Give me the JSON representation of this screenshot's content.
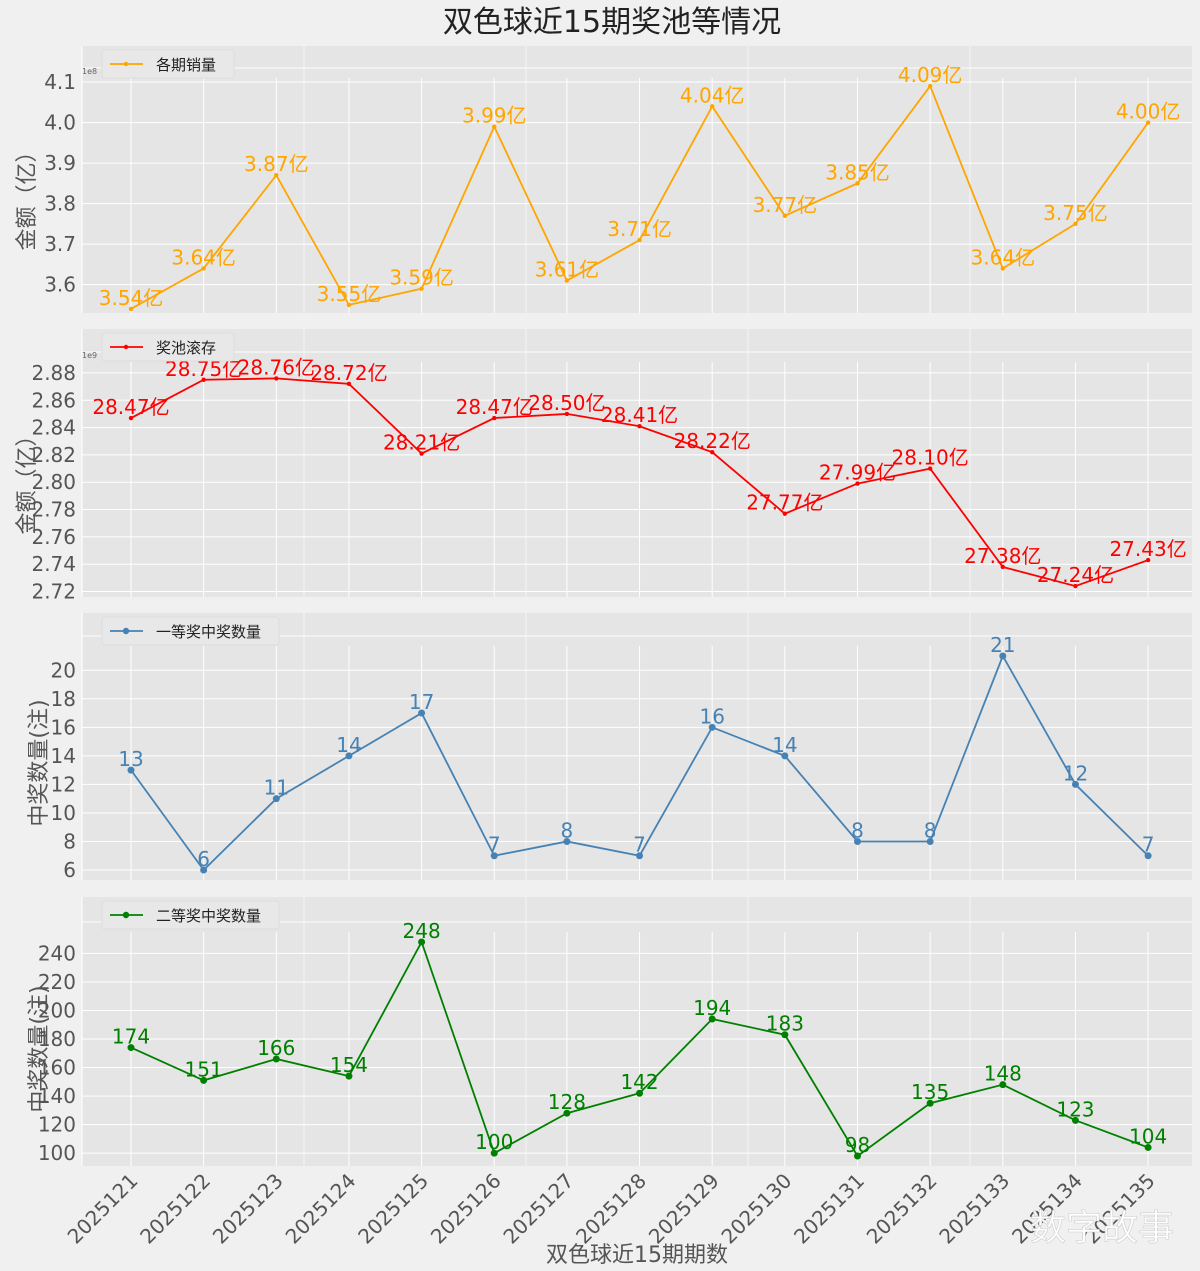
{
  "chart_data": {
    "title": "双色球近15期奖池等情况",
    "xlabel": "双色球近15期期数",
    "categories": [
      "2025121",
      "2025122",
      "2025123",
      "2025124",
      "2025125",
      "2025126",
      "2025127",
      "2025128",
      "2025129",
      "2025130",
      "2025131",
      "2025132",
      "2025133",
      "2025134",
      "2025135"
    ],
    "watermark": "数字故事",
    "panels": [
      {
        "type": "line",
        "legend": "各期销量",
        "legend_position": "top-left",
        "ylabel": "金额（亿）",
        "color": "#ffa500",
        "marker": "star",
        "offset_label": "1e8",
        "ylim": [
          3.53,
          4.11
        ],
        "yticks": [
          3.6,
          3.7,
          3.8,
          3.9,
          4.0,
          4.1
        ],
        "ytick_labels": [
          "3.6",
          "3.7",
          "3.8",
          "3.9",
          "4.0",
          "4.1"
        ],
        "values": [
          3.54,
          3.64,
          3.87,
          3.55,
          3.59,
          3.99,
          3.61,
          3.71,
          4.04,
          3.77,
          3.85,
          4.09,
          3.64,
          3.75,
          4.0
        ],
        "labels": [
          "3.54亿",
          "3.64亿",
          "3.87亿",
          "3.55亿",
          "3.59亿",
          "3.99亿",
          "3.61亿",
          "3.71亿",
          "4.04亿",
          "3.77亿",
          "3.85亿",
          "4.09亿",
          "3.64亿",
          "3.75亿",
          "4.00亿"
        ]
      },
      {
        "type": "line",
        "legend": "奖池滚存",
        "legend_position": "top-left",
        "ylabel": "金额（亿）",
        "color": "#ff0000",
        "marker": "star",
        "offset_label": "1e9",
        "ylim": [
          2.716,
          2.888
        ],
        "yticks": [
          2.72,
          2.74,
          2.76,
          2.78,
          2.8,
          2.82,
          2.84,
          2.86,
          2.88
        ],
        "ytick_labels": [
          "2.72",
          "2.74",
          "2.76",
          "2.78",
          "2.80",
          "2.82",
          "2.84",
          "2.86",
          "2.88"
        ],
        "values": [
          2.847,
          2.875,
          2.876,
          2.872,
          2.821,
          2.847,
          2.85,
          2.841,
          2.822,
          2.777,
          2.799,
          2.81,
          2.738,
          2.724,
          2.743
        ],
        "labels": [
          "28.47亿",
          "28.75亿",
          "28.76亿",
          "28.72亿",
          "28.21亿",
          "28.47亿",
          "28.50亿",
          "28.41亿",
          "28.22亿",
          "27.77亿",
          "27.99亿",
          "28.10亿",
          "27.38亿",
          "27.24亿",
          "27.43亿"
        ]
      },
      {
        "type": "line",
        "legend": "一等奖中奖数量",
        "legend_position": "top-left",
        "ylabel": "中奖数量(注)",
        "color": "#4682b4",
        "marker": "circle",
        "ylim": [
          5.3,
          21.7
        ],
        "yticks": [
          6,
          8,
          10,
          12,
          14,
          16,
          18,
          20
        ],
        "ytick_labels": [
          "6",
          "8",
          "10",
          "12",
          "14",
          "16",
          "18",
          "20"
        ],
        "values": [
          13,
          6,
          11,
          14,
          17,
          7,
          8,
          7,
          16,
          14,
          8,
          8,
          21,
          12,
          7
        ],
        "labels": [
          "13",
          "6",
          "11",
          "14",
          "17",
          "7",
          "8",
          "7",
          "16",
          "14",
          "8",
          "8",
          "21",
          "12",
          "7"
        ]
      },
      {
        "type": "line",
        "legend": "二等奖中奖数量",
        "legend_position": "top-left",
        "ylabel": "中奖数量(注)",
        "color": "#008000",
        "marker": "circle",
        "ylim": [
          91,
          255
        ],
        "yticks": [
          100,
          120,
          140,
          160,
          180,
          200,
          220,
          240
        ],
        "ytick_labels": [
          "100",
          "120",
          "140",
          "160",
          "180",
          "200",
          "220",
          "240"
        ],
        "values": [
          174,
          151,
          166,
          154,
          248,
          100,
          128,
          142,
          194,
          183,
          98,
          135,
          148,
          123,
          104
        ],
        "labels": [
          "174",
          "151",
          "166",
          "154",
          "248",
          "100",
          "128",
          "142",
          "194",
          "183",
          "98",
          "135",
          "148",
          "123",
          "104"
        ]
      }
    ]
  }
}
